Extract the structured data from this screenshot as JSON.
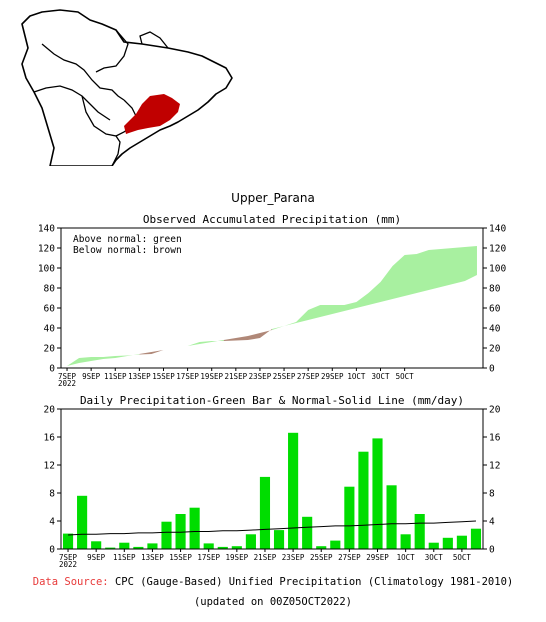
{
  "region": {
    "title": "Upper_Parana"
  },
  "map": {
    "land_color": "#ffffff",
    "outline_color": "#000000",
    "region_color": "#c00000"
  },
  "chart_data": [
    {
      "type": "area",
      "title": "Observed Accumulated Precipitation (mm)",
      "ylim": [
        0,
        140
      ],
      "yticks": [
        0,
        20,
        40,
        60,
        80,
        100,
        120,
        140
      ],
      "x_tick_labels": [
        "7SEP",
        "9SEP",
        "11SEP",
        "13SEP",
        "15SEP",
        "17SEP",
        "19SEP",
        "21SEP",
        "23SEP",
        "25SEP",
        "27SEP",
        "29SEP",
        "1OCT",
        "3OCT",
        "5OCT"
      ],
      "x_year_label": "2022",
      "annotations": [
        "Above normal: green",
        "Below normal: brown"
      ],
      "colors": {
        "above": "#a8f0a0",
        "below": "#b08878"
      },
      "series": [
        {
          "name": "Observed",
          "values": [
            2,
            10,
            11,
            11,
            12,
            12.5,
            13.5,
            14,
            18,
            20,
            22,
            26,
            27,
            27,
            27.5,
            28,
            30,
            39,
            42,
            46,
            58,
            63,
            63,
            63,
            66,
            75,
            86,
            102,
            113,
            114,
            118,
            119,
            120,
            121,
            122
          ]
        },
        {
          "name": "Normal",
          "values": [
            2,
            5,
            7,
            9,
            10,
            12,
            14,
            16,
            18,
            20,
            22,
            24,
            26,
            28,
            30,
            32,
            35,
            38,
            42,
            45,
            48,
            51,
            54,
            57,
            60,
            63,
            66,
            69,
            72,
            75,
            78,
            81,
            84,
            87,
            93
          ]
        }
      ]
    },
    {
      "type": "bar",
      "title": "Daily Precipitation-Green Bar & Normal-Solid Line (mm/day)",
      "ylim": [
        0,
        20
      ],
      "yticks": [
        0,
        4,
        8,
        12,
        16,
        20
      ],
      "x_tick_labels": [
        "7SEP",
        "9SEP",
        "11SEP",
        "13SEP",
        "15SEP",
        "17SEP",
        "19SEP",
        "21SEP",
        "23SEP",
        "25SEP",
        "27SEP",
        "29SEP",
        "1OCT",
        "3OCT",
        "5OCT"
      ],
      "x_year_label": "2022",
      "colors": {
        "bar": "#00dd00",
        "line": "#000000"
      },
      "values": [
        2.2,
        7.6,
        1.1,
        0.2,
        0.9,
        0.3,
        0.8,
        3.9,
        5.0,
        5.9,
        0.8,
        0.3,
        0.4,
        2.1,
        10.3,
        2.7,
        16.6,
        4.6,
        0.4,
        1.2,
        8.9,
        13.9,
        15.8,
        9.1,
        2.1,
        5.0,
        0.9,
        1.6,
        1.9,
        2.9
      ],
      "normal": [
        2.0,
        2.1,
        2.1,
        2.2,
        2.2,
        2.3,
        2.3,
        2.4,
        2.4,
        2.5,
        2.5,
        2.6,
        2.6,
        2.7,
        2.8,
        2.9,
        3.0,
        3.1,
        3.2,
        3.3,
        3.3,
        3.4,
        3.5,
        3.6,
        3.6,
        3.7,
        3.7,
        3.8,
        3.9,
        4.0
      ]
    }
  ],
  "footer": {
    "source_label": "Data Source:",
    "source_text": "CPC (Gauge-Based) Unified Precipitation (Climatology 1981-2010)",
    "updated": "(updated on 00Z05OCT2022)"
  }
}
